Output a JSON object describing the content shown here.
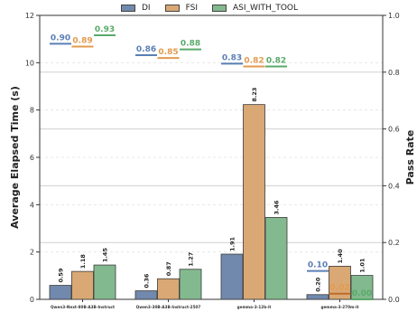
{
  "chart_data": {
    "type": "bar",
    "categories": [
      "Qwen3-Next-80B-A3B-Instruct",
      "Qwen3-30B-A3B-Instruct-2507",
      "gemma-3-12b-it",
      "gemma-3-270m-it"
    ],
    "series": [
      {
        "name": "DI",
        "color": "#7189ad",
        "time": [
          0.59,
          0.36,
          1.91,
          0.2
        ],
        "time_labels": [
          "0.59",
          "0.36",
          "1.91",
          "0.20"
        ],
        "pass_rate": [
          0.9,
          0.86,
          0.83,
          0.1
        ],
        "pass_labels": [
          "0.90",
          "0.86",
          "0.83",
          "0.10"
        ],
        "pass_label_color": "#5b7fb5"
      },
      {
        "name": "FSI",
        "color": "#d9a874",
        "time": [
          1.18,
          0.87,
          8.23,
          1.4
        ],
        "time_labels": [
          "1.18",
          "0.87",
          "8.23",
          "1.40"
        ],
        "pass_rate": [
          0.89,
          0.85,
          0.82,
          0.02
        ],
        "pass_labels": [
          "0.89",
          "0.85",
          "0.82",
          "0.02"
        ],
        "pass_label_color": "#e39a4e"
      },
      {
        "name": "ASI_WITH_TOOL",
        "color": "#83b98f",
        "time": [
          1.45,
          1.27,
          3.46,
          1.01
        ],
        "time_labels": [
          "1.45",
          "1.27",
          "3.46",
          "1.01"
        ],
        "pass_rate": [
          0.93,
          0.88,
          0.82,
          0.0
        ],
        "pass_labels": [
          "0.93",
          "0.88",
          "0.82",
          "0.00"
        ],
        "pass_label_color": "#5aaa6a"
      }
    ],
    "ylabel": "Average Elapsed Time (s)",
    "y2label": "Pass Rate",
    "ylim": [
      0,
      12
    ],
    "y2lim": [
      0,
      1.0
    ],
    "yticks": [
      "0",
      "2",
      "4",
      "6",
      "8",
      "10",
      "12"
    ],
    "y2ticks": [
      "0.0",
      "0.2",
      "0.4",
      "0.6",
      "0.8",
      "1.0"
    ],
    "pass_line_color": "#c06c2a",
    "grid": true,
    "legend_position": "top-center"
  }
}
